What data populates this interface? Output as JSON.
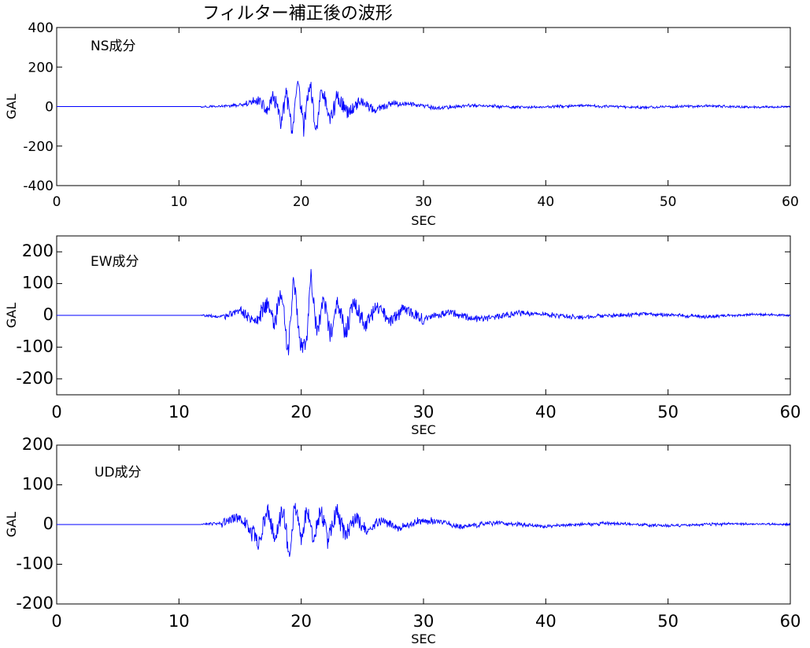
{
  "figure": {
    "title": "フィルター補正後の波形"
  },
  "chart_data": [
    {
      "type": "line",
      "component_label": "NS成分",
      "xlabel": "SEC",
      "ylabel": "GAL",
      "xlim": [
        0,
        60
      ],
      "ylim": [
        -400,
        400
      ],
      "x_ticks": [
        0,
        10,
        20,
        30,
        40,
        50,
        60
      ],
      "y_ticks": [
        -400,
        -200,
        0,
        200,
        400
      ],
      "grid": false,
      "line_color": "#0000ff",
      "series": [
        {
          "x": [
            0,
            11.8,
            14,
            15.5,
            16.5,
            17.2,
            17.8,
            18.3,
            18.8,
            19.3,
            19.7,
            20.2,
            20.7,
            21.2,
            21.7,
            22.3,
            23,
            23.8,
            24.8,
            26,
            27.5,
            29,
            31,
            34,
            38,
            43,
            48,
            53,
            57,
            60
          ],
          "y": [
            0,
            0,
            3,
            10,
            35,
            -25,
            55,
            -90,
            60,
            -145,
            120,
            -110,
            125,
            -125,
            95,
            -70,
            50,
            -35,
            30,
            -20,
            15,
            12,
            -8,
            6,
            -5,
            4,
            -4,
            3,
            -3,
            0
          ]
        }
      ]
    },
    {
      "type": "line",
      "component_label": "EW成分",
      "xlabel": "SEC",
      "ylabel": "GAL",
      "xlim": [
        0,
        60
      ],
      "ylim": [
        -250,
        250
      ],
      "x_ticks": [
        0,
        10,
        20,
        30,
        40,
        50,
        60
      ],
      "y_ticks": [
        -200,
        -100,
        0,
        100,
        200
      ],
      "grid": false,
      "line_color": "#0000ff",
      "series": [
        {
          "x": [
            0,
            11.8,
            13.5,
            15,
            16.2,
            17.2,
            17.8,
            18.4,
            18.9,
            19.4,
            19.9,
            20.4,
            20.8,
            21.3,
            21.8,
            22.4,
            23,
            23.6,
            24.3,
            25.2,
            26.2,
            27.3,
            28.5,
            30,
            32,
            34.5,
            38,
            43,
            48,
            53,
            57,
            60
          ],
          "y": [
            0,
            0,
            -5,
            15,
            -20,
            40,
            -30,
            85,
            -130,
            125,
            -90,
            -95,
            130,
            -70,
            60,
            -60,
            50,
            -55,
            35,
            -30,
            25,
            -20,
            25,
            -15,
            10,
            -12,
            8,
            -6,
            5,
            -4,
            3,
            0
          ]
        }
      ]
    },
    {
      "type": "line",
      "component_label": "UD成分",
      "xlabel": "SEC",
      "ylabel": "GAL",
      "xlim": [
        0,
        60
      ],
      "ylim": [
        -200,
        200
      ],
      "x_ticks": [
        0,
        10,
        20,
        30,
        40,
        50,
        60
      ],
      "y_ticks": [
        -200,
        -100,
        0,
        100,
        200
      ],
      "grid": false,
      "line_color": "#0000ff",
      "series": [
        {
          "x": [
            0,
            11.8,
            13.5,
            15,
            15.8,
            16.5,
            17.2,
            17.9,
            18.5,
            19,
            19.5,
            20,
            20.5,
            21,
            21.6,
            22.2,
            22.9,
            23.6,
            24.4,
            25.3,
            26.5,
            28,
            29.5,
            31,
            33,
            36,
            40,
            45,
            50,
            55,
            60
          ],
          "y": [
            0,
            0,
            4,
            20,
            -12,
            -48,
            40,
            -35,
            45,
            -72,
            55,
            -42,
            48,
            -52,
            40,
            -45,
            35,
            -30,
            20,
            -15,
            12,
            -10,
            8,
            10,
            -6,
            5,
            -4,
            3,
            -3,
            2,
            0
          ]
        }
      ]
    }
  ]
}
